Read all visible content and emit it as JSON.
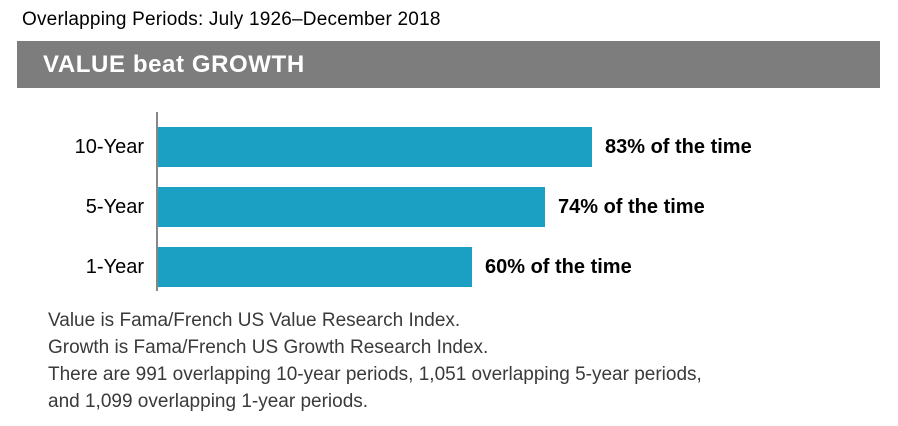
{
  "header": {
    "subtitle": "Overlapping Periods: July 1926–December 2018",
    "banner_title": "VALUE beat GROWTH"
  },
  "colors": {
    "bar": "#1b9fc2",
    "banner_bg": "#7d7d7d",
    "banner_text": "#ffffff",
    "axis": "#878787",
    "footnote_text": "#3a3a3a"
  },
  "chart_data": {
    "type": "bar",
    "orientation": "horizontal",
    "title": "VALUE beat GROWTH",
    "categories": [
      "10-Year",
      "5-Year",
      "1-Year"
    ],
    "values": [
      83,
      74,
      60
    ],
    "value_labels": [
      "83% of the time",
      "74% of the time",
      "60% of the time"
    ],
    "xlim": [
      0,
      100
    ],
    "unit": "percent",
    "grid": false,
    "legend": false
  },
  "footnotes": {
    "lines": [
      "Value is Fama/French US Value Research Index.",
      "Growth is Fama/French US Growth Research Index.",
      "There are 991 overlapping 10-year periods, 1,051 overlapping 5-year periods,",
      "and 1,099 overlapping 1-year periods."
    ]
  }
}
